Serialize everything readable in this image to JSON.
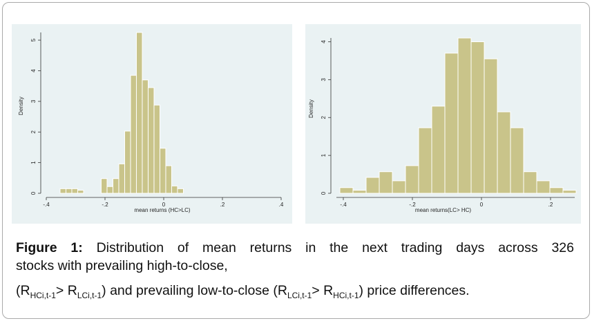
{
  "colors": {
    "bar_fill": "#c9c48a",
    "bar_stroke": "#ffffff",
    "panel_bg": "#eaf2f3",
    "axis": "#333333"
  },
  "chart_data": [
    {
      "type": "bar",
      "xlabel": "mean returns (HC>LC)",
      "ylabel": "Density",
      "xlim": [
        -0.4,
        0.4
      ],
      "ylim": [
        0,
        5.25
      ],
      "x_ticks": [
        -0.4,
        -0.2,
        0,
        0.2,
        0.4
      ],
      "x_tick_labels": [
        "-.4",
        "-.2",
        "0",
        ".2",
        ".4"
      ],
      "y_ticks": [
        0,
        1,
        2,
        3,
        4,
        5
      ],
      "y_tick_labels": [
        "0",
        "1",
        "2",
        "3",
        "4",
        "5"
      ],
      "grid": false,
      "bins": [
        {
          "x0": -0.353,
          "x1": -0.333,
          "value": 0.15
        },
        {
          "x0": -0.333,
          "x1": -0.313,
          "value": 0.15
        },
        {
          "x0": -0.313,
          "x1": -0.293,
          "value": 0.15
        },
        {
          "x0": -0.293,
          "x1": -0.273,
          "value": 0.1
        },
        {
          "x0": -0.213,
          "x1": -0.193,
          "value": 0.48
        },
        {
          "x0": -0.193,
          "x1": -0.173,
          "value": 0.22
        },
        {
          "x0": -0.173,
          "x1": -0.153,
          "value": 0.48
        },
        {
          "x0": -0.153,
          "x1": -0.133,
          "value": 0.96
        },
        {
          "x0": -0.133,
          "x1": -0.113,
          "value": 2.03
        },
        {
          "x0": -0.113,
          "x1": -0.093,
          "value": 3.85
        },
        {
          "x0": -0.093,
          "x1": -0.073,
          "value": 5.25
        },
        {
          "x0": -0.073,
          "x1": -0.053,
          "value": 3.7
        },
        {
          "x0": -0.053,
          "x1": -0.033,
          "value": 3.45
        },
        {
          "x0": -0.033,
          "x1": -0.013,
          "value": 2.88
        },
        {
          "x0": -0.013,
          "x1": 0.007,
          "value": 1.47
        },
        {
          "x0": 0.007,
          "x1": 0.027,
          "value": 0.9
        },
        {
          "x0": 0.027,
          "x1": 0.047,
          "value": 0.24
        },
        {
          "x0": 0.047,
          "x1": 0.067,
          "value": 0.15
        }
      ]
    },
    {
      "type": "bar",
      "xlabel": "mean returns(LC> HC)",
      "ylabel": "Density",
      "xlim": [
        -0.42,
        0.27
      ],
      "ylim": [
        0,
        4.1
      ],
      "x_ticks": [
        -0.4,
        -0.2,
        0,
        0.2
      ],
      "x_tick_labels": [
        "-.4",
        "-.2",
        "0",
        ".2"
      ],
      "y_ticks": [
        0,
        1,
        2,
        3,
        4
      ],
      "y_tick_labels": [
        "0",
        "1",
        "2",
        "3",
        "4"
      ],
      "grid": false,
      "bins": [
        {
          "x0": -0.41,
          "x1": -0.372,
          "value": 0.15
        },
        {
          "x0": -0.372,
          "x1": -0.334,
          "value": 0.08
        },
        {
          "x0": -0.334,
          "x1": -0.296,
          "value": 0.42
        },
        {
          "x0": -0.296,
          "x1": -0.258,
          "value": 0.57
        },
        {
          "x0": -0.258,
          "x1": -0.22,
          "value": 0.33
        },
        {
          "x0": -0.22,
          "x1": -0.182,
          "value": 0.73
        },
        {
          "x0": -0.182,
          "x1": -0.144,
          "value": 1.73
        },
        {
          "x0": -0.144,
          "x1": -0.106,
          "value": 2.3
        },
        {
          "x0": -0.106,
          "x1": -0.068,
          "value": 3.7
        },
        {
          "x0": -0.068,
          "x1": -0.03,
          "value": 4.1
        },
        {
          "x0": -0.03,
          "x1": 0.008,
          "value": 4.0
        },
        {
          "x0": 0.008,
          "x1": 0.046,
          "value": 3.55
        },
        {
          "x0": 0.046,
          "x1": 0.084,
          "value": 2.15
        },
        {
          "x0": 0.084,
          "x1": 0.122,
          "value": 1.73
        },
        {
          "x0": 0.122,
          "x1": 0.16,
          "value": 0.57
        },
        {
          "x0": 0.16,
          "x1": 0.198,
          "value": 0.33
        },
        {
          "x0": 0.198,
          "x1": 0.236,
          "value": 0.15
        },
        {
          "x0": 0.236,
          "x1": 0.274,
          "value": 0.08
        }
      ]
    }
  ],
  "caption": {
    "label": "Figure 1:",
    "line1_text": " Distribution of mean returns in the next trading days across 326",
    "line2_text": "stocks with prevailing high-to-close,",
    "line3": {
      "p1": "(R",
      "s1": "HCi,t-1",
      "p2": "> R",
      "s2": "LCi,t-1",
      "p3": ") and prevailing low-to-close (R",
      "s3": "LCi,t-1",
      "p4": "> R",
      "s4": "HCi,t-1",
      "p5": ") price differences."
    }
  }
}
